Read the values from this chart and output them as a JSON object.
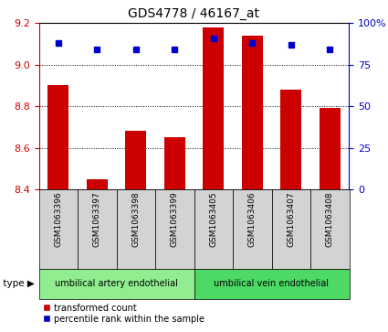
{
  "title": "GDS4778 / 46167_at",
  "samples": [
    "GSM1063396",
    "GSM1063397",
    "GSM1063398",
    "GSM1063399",
    "GSM1063405",
    "GSM1063406",
    "GSM1063407",
    "GSM1063408"
  ],
  "red_values": [
    8.9,
    8.45,
    8.68,
    8.65,
    9.18,
    9.14,
    8.88,
    8.79
  ],
  "blue_values_pct": [
    88,
    84,
    84,
    84,
    91,
    88,
    87,
    84
  ],
  "ylim_left": [
    8.4,
    9.2
  ],
  "ylim_right": [
    0,
    100
  ],
  "yticks_left": [
    8.4,
    8.6,
    8.8,
    9.0,
    9.2
  ],
  "yticks_right": [
    0,
    25,
    50,
    75,
    100
  ],
  "cell_type_groups": [
    {
      "label": "umbilical artery endothelial",
      "start": 0,
      "end": 4,
      "color": "#90EE90"
    },
    {
      "label": "umbilical vein endothelial",
      "start": 4,
      "end": 8,
      "color": "#4CD964"
    }
  ],
  "bar_color": "#CC0000",
  "dot_color": "#0000CC",
  "sample_bg_color": "#D3D3D3",
  "left_axis_color": "#CC0000",
  "right_axis_color": "#0000CC",
  "bar_width": 0.55
}
